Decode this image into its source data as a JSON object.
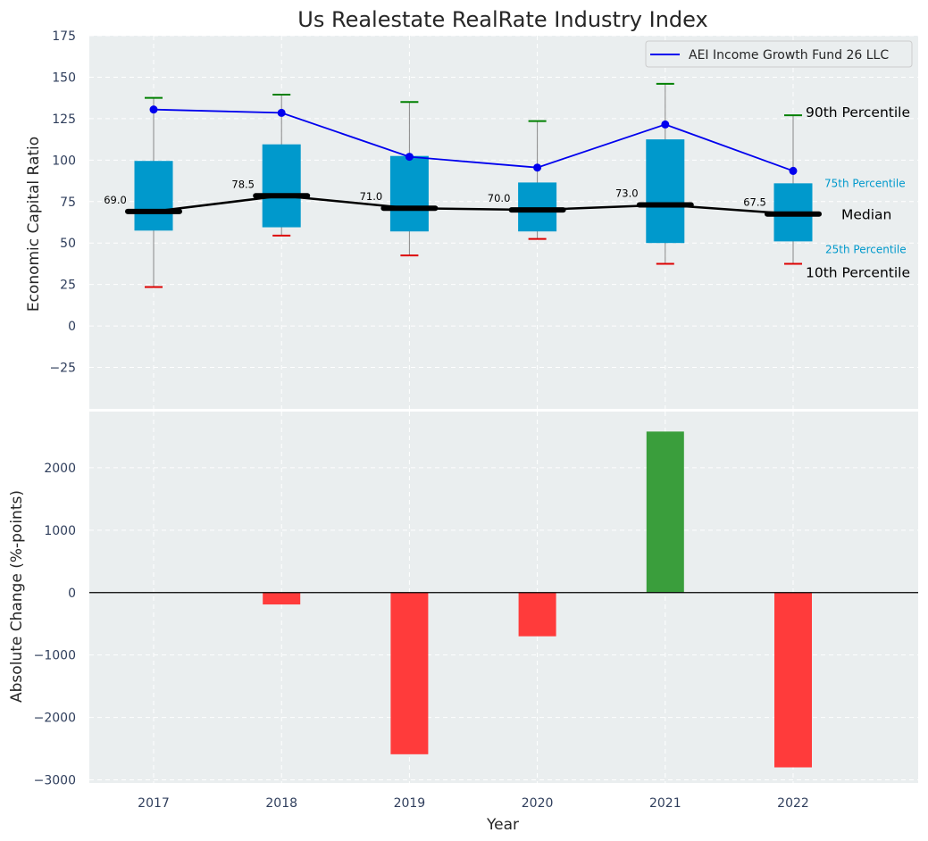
{
  "chart_data": [
    {
      "type": "box",
      "title": "Us Realestate RealRate Industry Index",
      "ylabel": "Economic Capital Ratio",
      "ylim": [
        -50,
        175
      ],
      "yticks": [
        -25,
        0,
        25,
        50,
        75,
        100,
        125,
        150,
        175
      ],
      "ytick_labels": [
        "−25",
        "0",
        "25",
        "50",
        "75",
        "100",
        "125",
        "150",
        "175"
      ],
      "grid": true,
      "legend_placement": "top-right",
      "categories": [
        "2017",
        "2018",
        "2019",
        "2020",
        "2021",
        "2022"
      ],
      "boxes": [
        {
          "p10": 23.5,
          "p25": 57.5,
          "median": 69.0,
          "p75": 99.5,
          "p90": 137.5
        },
        {
          "p10": 54.5,
          "p25": 59.5,
          "median": 78.5,
          "p75": 109.5,
          "p90": 139.5
        },
        {
          "p10": 42.5,
          "p25": 57.0,
          "median": 71.0,
          "p75": 102.5,
          "p90": 135.0
        },
        {
          "p10": 52.5,
          "p25": 57.0,
          "median": 70.0,
          "p75": 86.5,
          "p90": 123.5
        },
        {
          "p10": 37.5,
          "p25": 50.0,
          "median": 73.0,
          "p75": 112.5,
          "p90": 146.0
        },
        {
          "p10": 37.5,
          "p25": 51.0,
          "median": 67.5,
          "p75": 86.0,
          "p90": 127.0
        }
      ],
      "median_labels": [
        "69.0",
        "78.5",
        "71.0",
        "70.0",
        "73.0",
        "67.5"
      ],
      "series": [
        {
          "name": "AEI Income Growth Fund 26 LLC",
          "values": [
            130.5,
            128.5,
            102.0,
            95.5,
            121.5,
            93.5
          ],
          "color": "#0000ee"
        }
      ],
      "percentile_labels": {
        "p90": "90th Percentile",
        "p75": "75th Percentile",
        "median": "Median",
        "p25": "25th Percentile",
        "p10": "10th Percentile"
      },
      "colors": {
        "box": "#0099cc",
        "median": "#000000",
        "p90_cap": "#008000",
        "p10_cap": "#dd0000",
        "whisker": "#888888",
        "background": "#eaeeef",
        "percentile_text": "#0099cc"
      }
    },
    {
      "type": "bar",
      "ylabel": "Absolute Change (%-points)",
      "xlabel": "Year",
      "ylim": [
        -3050,
        2900
      ],
      "yticks": [
        -3000,
        -2000,
        -1000,
        0,
        1000,
        2000
      ],
      "ytick_labels": [
        "−3000",
        "−2000",
        "−1000",
        "0",
        "1000",
        "2000"
      ],
      "categories": [
        "2017",
        "2018",
        "2019",
        "2020",
        "2021",
        "2022"
      ],
      "values": [
        0,
        -190,
        -2590,
        -700,
        2580,
        -2800
      ],
      "grid": true,
      "colors": {
        "positive": "#3a9e3c",
        "negative": "#ff3b3b",
        "zero_line": "#000000"
      }
    }
  ]
}
